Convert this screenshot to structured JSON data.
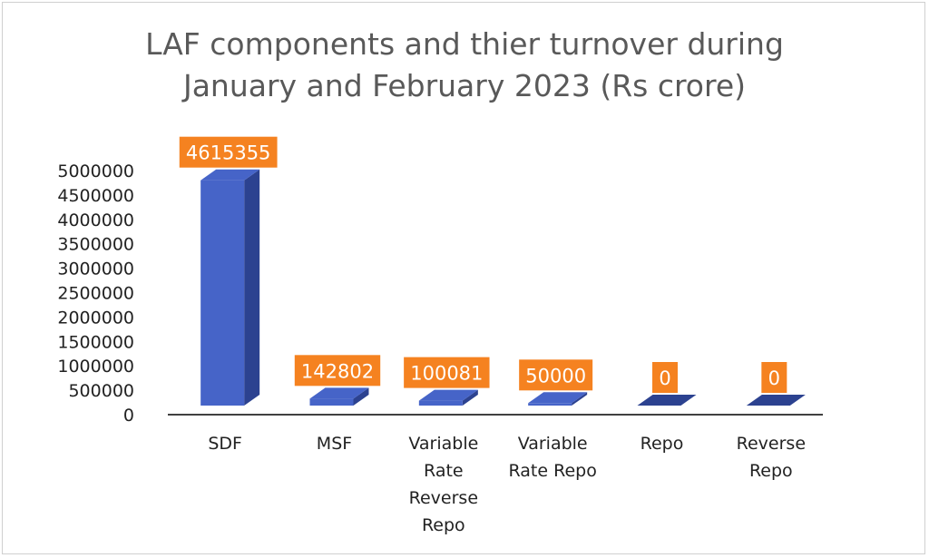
{
  "chart_data": {
    "type": "bar",
    "title_lines": [
      "LAF components and thier turnover during",
      "January and February 2023 (Rs crore)"
    ],
    "categories": [
      [
        "SDF"
      ],
      [
        "MSF"
      ],
      [
        "Variable",
        "Rate",
        "Reverse",
        "Repo"
      ],
      [
        "Variable",
        "Rate Repo"
      ],
      [
        "Repo"
      ],
      [
        "Reverse",
        "Repo"
      ]
    ],
    "values": [
      4615355,
      142802,
      100081,
      50000,
      0,
      0
    ],
    "data_labels": [
      "4615355",
      "142802",
      "100081",
      "50000",
      "0",
      "0"
    ],
    "yticks": [
      0,
      500000,
      1000000,
      1500000,
      2000000,
      2500000,
      3000000,
      3500000,
      4000000,
      4500000,
      5000000
    ],
    "ylim": [
      0,
      5000000
    ],
    "xlabel": "",
    "ylabel": "",
    "bar_color": "#4664c8",
    "bar_side_color": "#2c4290",
    "bar_top_color": "#6f8ae0",
    "label_bg_color": "#f58220",
    "legend": "none"
  }
}
